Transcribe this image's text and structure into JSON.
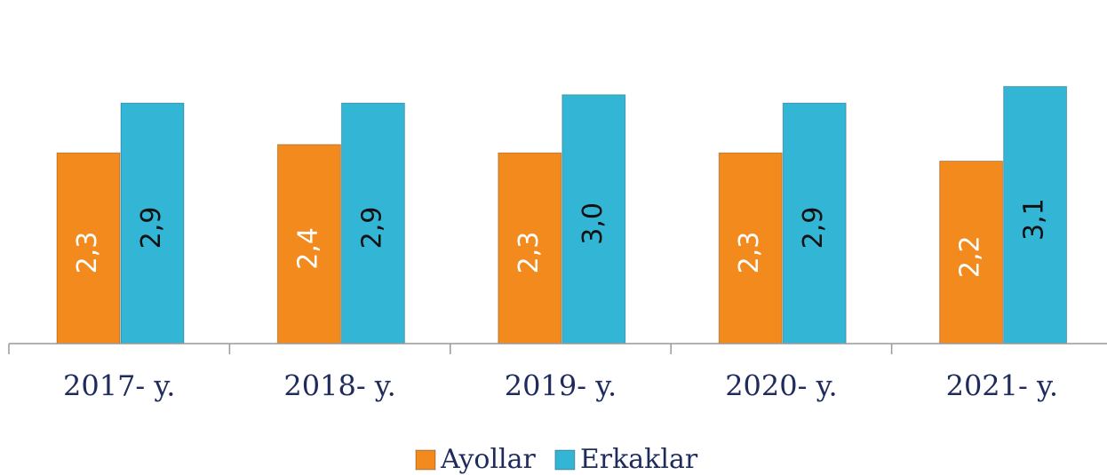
{
  "chart_data": {
    "type": "bar",
    "categories": [
      "2017- y.",
      "2018- y.",
      "2019- y.",
      "2020- y.",
      "2021- y."
    ],
    "series": [
      {
        "name": "Ayollar",
        "color": "#f28a1e",
        "values": [
          2.3,
          2.4,
          2.3,
          2.3,
          2.2
        ],
        "value_labels": [
          "2,3",
          "2,4",
          "2,3",
          "2,3",
          "2,2"
        ]
      },
      {
        "name": "Erkaklar",
        "color": "#33b5d6",
        "values": [
          2.9,
          2.9,
          3.0,
          2.9,
          3.1
        ],
        "value_labels": [
          "2,9",
          "2,9",
          "3,0",
          "2,9",
          "3,1"
        ]
      }
    ],
    "ylim": [
      0,
      3.5
    ],
    "legend": "bottom"
  }
}
